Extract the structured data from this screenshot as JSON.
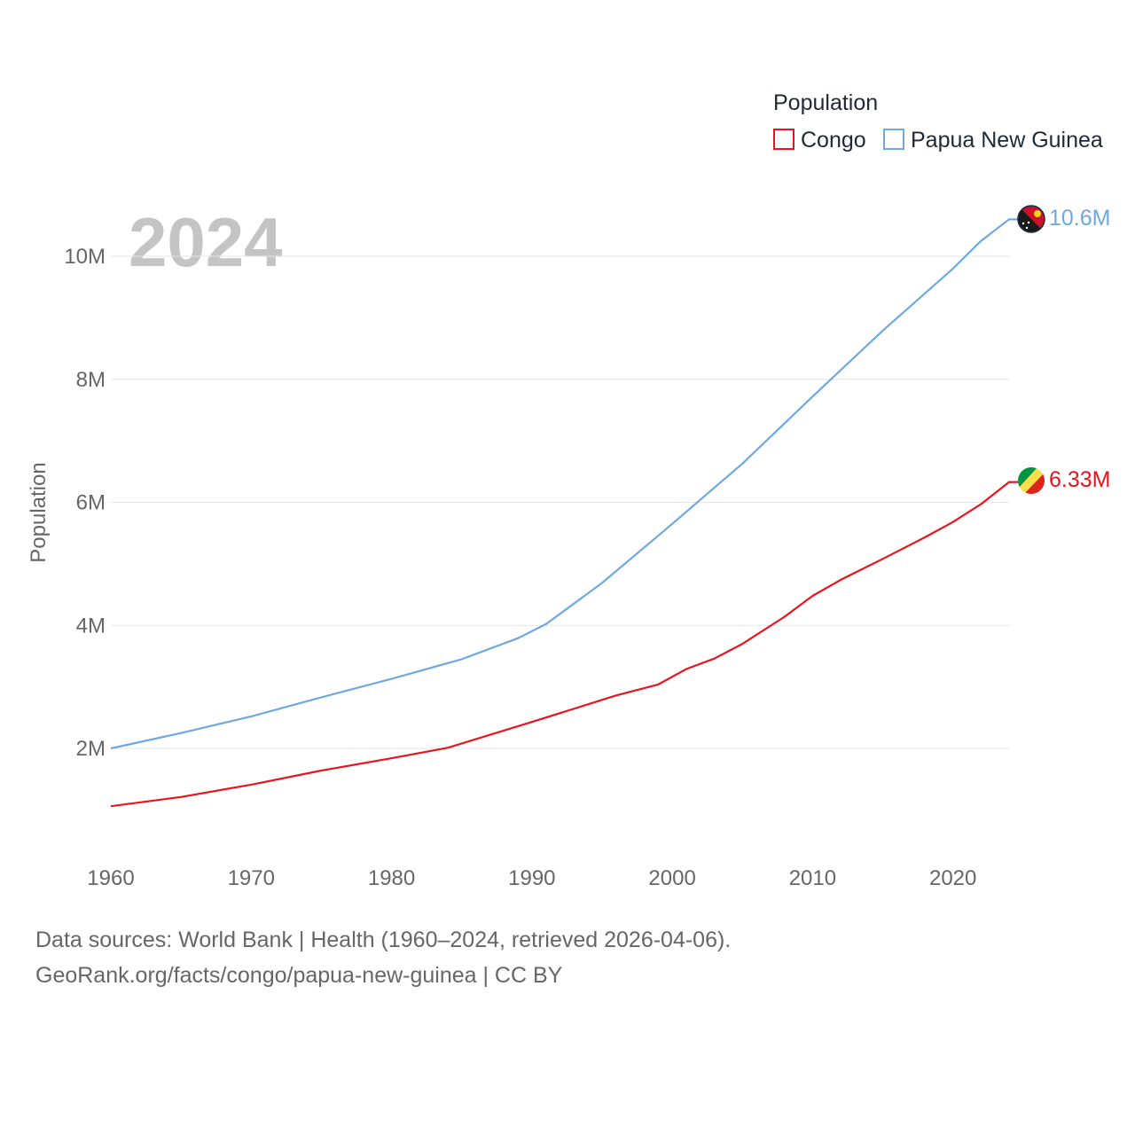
{
  "chart_data": {
    "type": "line",
    "title": "Population",
    "year": "2024",
    "ylabel": "Population",
    "xlim": [
      1960,
      2024
    ],
    "ylim": [
      0,
      11000000
    ],
    "yticks": [
      {
        "value": 2000000,
        "label": "2M"
      },
      {
        "value": 4000000,
        "label": "4M"
      },
      {
        "value": 6000000,
        "label": "6M"
      },
      {
        "value": 8000000,
        "label": "8M"
      },
      {
        "value": 10000000,
        "label": "10M"
      }
    ],
    "xticks": [
      {
        "value": 1960,
        "label": "1960"
      },
      {
        "value": 1970,
        "label": "1970"
      },
      {
        "value": 1980,
        "label": "1980"
      },
      {
        "value": 1990,
        "label": "1990"
      },
      {
        "value": 2000,
        "label": "2000"
      },
      {
        "value": 2010,
        "label": "2010"
      },
      {
        "value": 2020,
        "label": "2020"
      }
    ],
    "legend_position": "top-right",
    "series": [
      {
        "name": "Congo",
        "color": "#e8141e",
        "end_label": "6.33M",
        "flag_icon": "congo-flag-icon",
        "points": [
          [
            1960,
            1060000
          ],
          [
            1965,
            1210000
          ],
          [
            1970,
            1410000
          ],
          [
            1975,
            1640000
          ],
          [
            1980,
            1840000
          ],
          [
            1984,
            2010000
          ],
          [
            1990,
            2430000
          ],
          [
            1996,
            2860000
          ],
          [
            1999,
            3040000
          ],
          [
            2001,
            3290000
          ],
          [
            2003,
            3460000
          ],
          [
            2005,
            3700000
          ],
          [
            2008,
            4140000
          ],
          [
            2010,
            4480000
          ],
          [
            2012,
            4740000
          ],
          [
            2015,
            5080000
          ],
          [
            2018,
            5430000
          ],
          [
            2020,
            5680000
          ],
          [
            2022,
            5970000
          ],
          [
            2024,
            6330000
          ]
        ]
      },
      {
        "name": "Papua New Guinea",
        "color": "#6fa8e0",
        "end_label": "10.6M",
        "flag_icon": "papua-new-guinea-flag-icon",
        "points": [
          [
            1960,
            2000000
          ],
          [
            1965,
            2250000
          ],
          [
            1970,
            2520000
          ],
          [
            1975,
            2830000
          ],
          [
            1980,
            3130000
          ],
          [
            1985,
            3450000
          ],
          [
            1989,
            3790000
          ],
          [
            1991,
            4020000
          ],
          [
            1995,
            4690000
          ],
          [
            2000,
            5650000
          ],
          [
            2005,
            6630000
          ],
          [
            2010,
            7720000
          ],
          [
            2015,
            8790000
          ],
          [
            2020,
            9800000
          ],
          [
            2022,
            10250000
          ],
          [
            2024,
            10600000
          ]
        ]
      }
    ],
    "watermark_year": "2024"
  },
  "legend": {
    "title": "Population",
    "items": [
      {
        "label": "Congo",
        "color": "#e8141e"
      },
      {
        "label": "Papua New Guinea",
        "color": "#6fa8e0"
      }
    ]
  },
  "footer": {
    "sources": "Data sources: World Bank | Health (1960–2024, retrieved 2026-04-06).",
    "attribution": "GeoRank.org/facts/congo/papua-new-guinea | CC BY"
  }
}
